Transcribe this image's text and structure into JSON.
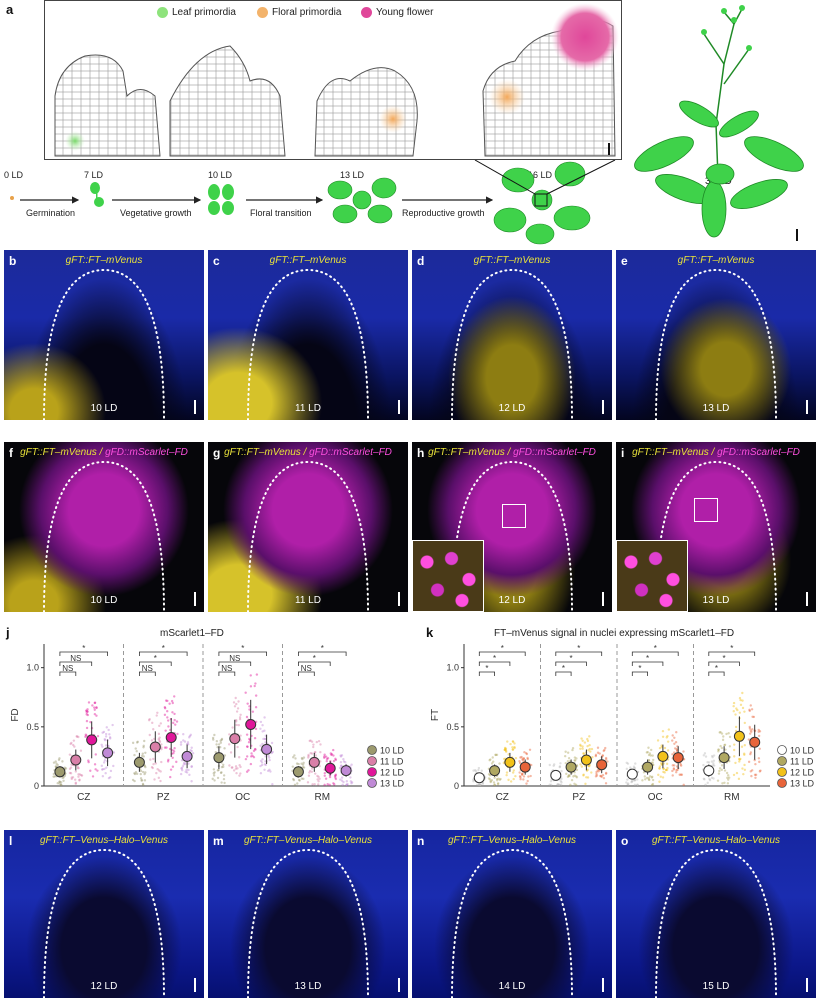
{
  "panel_a": {
    "label": "a",
    "legend": [
      "Leaf primordia",
      "Floral primordia",
      "Young flower"
    ],
    "legend_colors": [
      "#8ee37c",
      "#f3b36b",
      "#e0479a"
    ],
    "stages": [
      "0 LD",
      "7 LD",
      "10 LD",
      "13 LD",
      "16 LD",
      "35 LD"
    ],
    "arrows": [
      "Germination",
      "Vegetative growth",
      "Floral transition",
      "Reproductive growth"
    ],
    "plant_color": "#3fd24a"
  },
  "row1": [
    {
      "label": "b",
      "title": "gFT::FT–mVenus",
      "day": "10 LD"
    },
    {
      "label": "c",
      "title": "gFT::FT–mVenus",
      "day": "11 LD"
    },
    {
      "label": "d",
      "title": "gFT::FT–mVenus",
      "day": "12 LD"
    },
    {
      "label": "e",
      "title": "gFT::FT–mVenus",
      "day": "13 LD"
    }
  ],
  "row2": [
    {
      "label": "f",
      "title_a": "gFT::FT–mVenus",
      "sep": " / ",
      "title_b": "gFD::mScarlet–FD",
      "day": "10 LD"
    },
    {
      "label": "g",
      "title_a": "gFT::FT–mVenus",
      "sep": " / ",
      "title_b": "gFD::mScarlet–FD",
      "day": "11 LD"
    },
    {
      "label": "h",
      "title_a": "gFT::FT–mVenus",
      "sep": " / ",
      "title_b": "gFD::mScarlet–FD",
      "day": "12 LD"
    },
    {
      "label": "i",
      "title_a": "gFT::FT–mVenus",
      "sep": " / ",
      "title_b": "gFD::mScarlet–FD",
      "day": "13 LD"
    }
  ],
  "row4": [
    {
      "label": "l",
      "title": "gFT::FT–Venus–Halo–Venus",
      "day": "12 LD"
    },
    {
      "label": "m",
      "title": "gFT::FT–Venus–Halo–Venus",
      "day": "13 LD"
    },
    {
      "label": "n",
      "title": "gFT::FT–Venus–Halo–Venus",
      "day": "14 LD"
    },
    {
      "label": "o",
      "title": "gFT::FT–Venus–Halo–Venus",
      "day": "15 LD"
    }
  ],
  "chart_data": [
    {
      "panel": "j",
      "type": "scatter",
      "title": "mScarlet1–FD",
      "ylabel": "FD",
      "xlabel": "",
      "categories": [
        "CZ",
        "PZ",
        "OC",
        "RM"
      ],
      "ylim": [
        0,
        1.2
      ],
      "yticks": [
        "1.0",
        "0.5",
        "0"
      ],
      "series": [
        {
          "name": "10 LD",
          "color": "#9c9a6e",
          "values": [
            0.12,
            0.2,
            0.24,
            0.12
          ]
        },
        {
          "name": "11 LD",
          "color": "#d97fa8",
          "values": [
            0.22,
            0.33,
            0.4,
            0.2
          ]
        },
        {
          "name": "12 LD",
          "color": "#e0179a",
          "values": [
            0.39,
            0.41,
            0.52,
            0.15
          ]
        },
        {
          "name": "13 LD",
          "color": "#c08ad6",
          "values": [
            0.28,
            0.25,
            0.31,
            0.13
          ]
        }
      ],
      "significance": [
        [
          "NS",
          "NS",
          "*"
        ],
        [
          "NS",
          "*",
          "*"
        ],
        [
          "NS",
          "NS",
          "*"
        ],
        [
          "NS",
          "*",
          "*"
        ]
      ]
    },
    {
      "panel": "k",
      "type": "scatter",
      "title": "FT–mVenus signal in nuclei expressing mScarlet1–FD",
      "ylabel": "FT",
      "xlabel": "",
      "categories": [
        "CZ",
        "PZ",
        "OC",
        "RM"
      ],
      "ylim": [
        0,
        1.2
      ],
      "yticks": [
        "1.0",
        "0.5",
        "0"
      ],
      "series": [
        {
          "name": "10 LD",
          "color": "#ffffff",
          "values": [
            0.07,
            0.09,
            0.1,
            0.13
          ]
        },
        {
          "name": "11 LD",
          "color": "#b0a862",
          "values": [
            0.13,
            0.16,
            0.16,
            0.24
          ]
        },
        {
          "name": "12 LD",
          "color": "#f2c21a",
          "values": [
            0.2,
            0.22,
            0.25,
            0.42
          ]
        },
        {
          "name": "13 LD",
          "color": "#e8643a",
          "values": [
            0.16,
            0.18,
            0.24,
            0.37
          ]
        }
      ],
      "significance": [
        [
          "*",
          "*",
          "*"
        ],
        [
          "*",
          "*",
          "*"
        ],
        [
          "*",
          "*",
          "*"
        ],
        [
          "*",
          "*",
          "*"
        ]
      ]
    }
  ]
}
